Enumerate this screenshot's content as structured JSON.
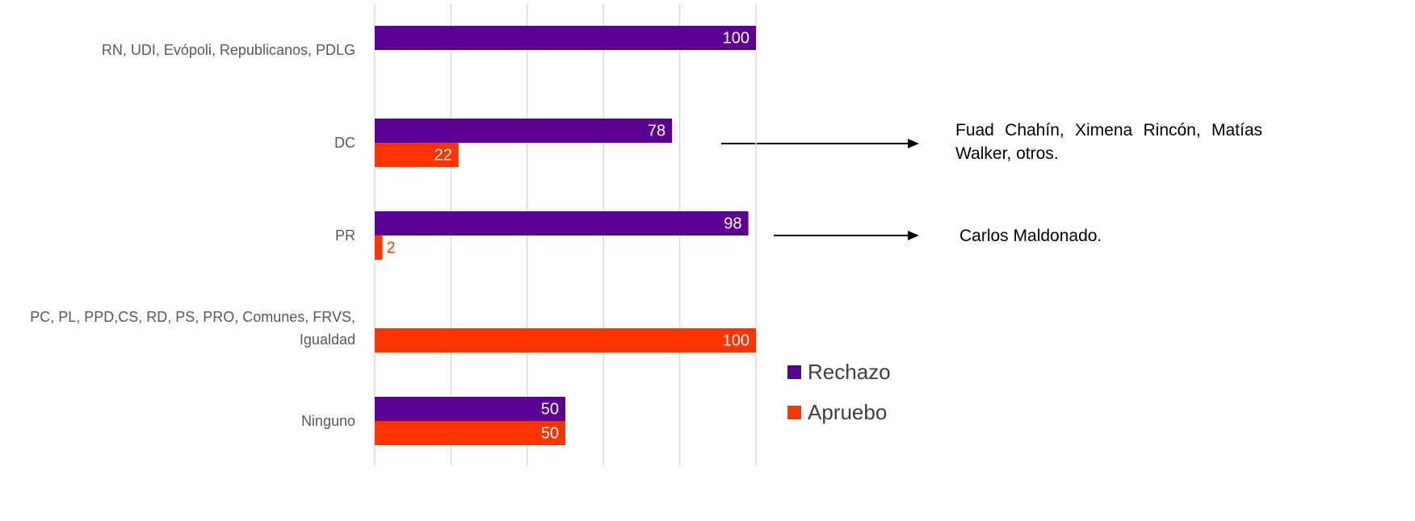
{
  "chart_data": {
    "type": "bar",
    "orientation": "horizontal",
    "categories": [
      "RN, UDI, Evópoli, Republicanos, PDLG",
      "DC",
      "PR",
      "PC, PL, PPD,CS, RD, PS, PRO, Comunes, FRVS, Igualdad",
      "Ninguno"
    ],
    "series": [
      {
        "name": "Rechazo",
        "color": "#5a0092",
        "values": [
          100,
          78,
          98,
          null,
          50
        ]
      },
      {
        "name": "Apruebo",
        "color": "#ff3300",
        "values": [
          null,
          22,
          2,
          100,
          50
        ]
      }
    ],
    "xlim": [
      0,
      100
    ],
    "xticks": [
      0,
      20,
      40,
      60,
      80,
      100
    ],
    "grid": true,
    "annotations": [
      "Fuad Chahín, Ximena Rincón, Matías Walker, otros.",
      "Carlos Maldonado."
    ]
  }
}
